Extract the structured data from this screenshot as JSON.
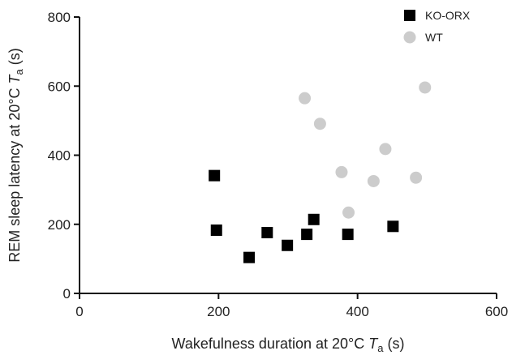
{
  "chart_data": {
    "type": "scatter",
    "title": "",
    "xlabel": {
      "prefix": "Wakefulness duration at 20°C ",
      "italic": "T",
      "sub": "a",
      "suffix": " (s)"
    },
    "ylabel": {
      "prefix": "REM sleep latency at 20°C ",
      "italic": "T",
      "sub": "a",
      "suffix": " (s)"
    },
    "xlim": [
      0,
      600
    ],
    "ylim": [
      0,
      800
    ],
    "xticks": [
      0,
      200,
      400,
      600
    ],
    "yticks": [
      0,
      200,
      400,
      600,
      800
    ],
    "grid": false,
    "legend_position": "top-right",
    "series": [
      {
        "name": "KO-ORX",
        "marker": "square",
        "color": "#000000",
        "points": [
          {
            "x": 194,
            "y": 341
          },
          {
            "x": 197,
            "y": 183
          },
          {
            "x": 244,
            "y": 104
          },
          {
            "x": 270,
            "y": 176
          },
          {
            "x": 299,
            "y": 139
          },
          {
            "x": 327,
            "y": 171
          },
          {
            "x": 337,
            "y": 214
          },
          {
            "x": 386,
            "y": 171
          },
          {
            "x": 451,
            "y": 194
          }
        ]
      },
      {
        "name": "WT",
        "marker": "circle",
        "color": "#cccccc",
        "points": [
          {
            "x": 324,
            "y": 565
          },
          {
            "x": 346,
            "y": 491
          },
          {
            "x": 377,
            "y": 351
          },
          {
            "x": 387,
            "y": 234
          },
          {
            "x": 423,
            "y": 325
          },
          {
            "x": 440,
            "y": 418
          },
          {
            "x": 484,
            "y": 335
          },
          {
            "x": 497,
            "y": 596
          }
        ]
      }
    ]
  }
}
